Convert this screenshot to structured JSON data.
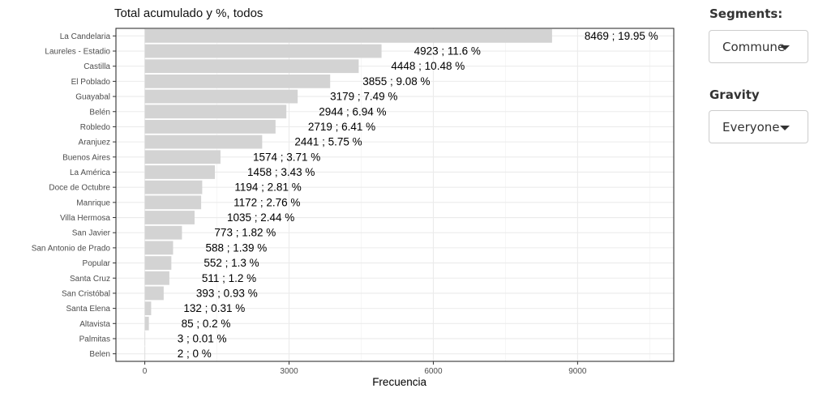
{
  "controls": {
    "segments": {
      "label": "Segments:",
      "value": "Commune",
      "caret_icon": "caret-down-icon"
    },
    "gravity": {
      "label": "Gravity",
      "value": "Everyone",
      "caret_icon": "caret-down-icon"
    }
  },
  "chart_data": {
    "type": "bar",
    "orientation": "horizontal",
    "title": "Total acumulado y %, todos",
    "xlabel": "Frecuencia",
    "ylabel": "",
    "xlim": [
      -600,
      11000
    ],
    "x_ticks": [
      0,
      3000,
      6000,
      9000
    ],
    "grid": true,
    "legend": "none",
    "bar_color": "#d3d3d3",
    "categories": [
      "La Candelaria",
      "Laureles - Estadio",
      "Castilla",
      "El Poblado",
      "Guayabal",
      "Belén",
      "Robledo",
      "Aranjuez",
      "Buenos Aires",
      "La América",
      "Doce de Octubre",
      "Manrique",
      "Villa Hermosa",
      "San Javier",
      "San Antonio de Prado",
      "Popular",
      "Santa Cruz",
      "San Cristóbal",
      "Santa Elena",
      "Altavista",
      "Palmitas",
      "Belen"
    ],
    "values": [
      8469,
      4923,
      4448,
      3855,
      3179,
      2944,
      2719,
      2441,
      1574,
      1458,
      1194,
      1172,
      1035,
      773,
      588,
      552,
      511,
      393,
      132,
      85,
      3,
      2
    ],
    "labels": [
      "8469 ; 19.95 %",
      "4923 ; 11.6 %",
      "4448 ; 10.48 %",
      "3855 ; 9.08 %",
      "3179 ; 7.49 %",
      "2944 ; 6.94 %",
      "2719 ; 6.41 %",
      "2441 ; 5.75 %",
      "1574 ; 3.71 %",
      "1458 ; 3.43 %",
      "1194 ; 2.81 %",
      "1172 ; 2.76 %",
      "1035 ; 2.44 %",
      "773 ; 1.82 %",
      "588 ; 1.39 %",
      "552 ; 1.3 %",
      "511 ; 1.2 %",
      "393 ; 0.93 %",
      "132 ; 0.31 %",
      "85 ; 0.2 %",
      "3 ; 0.01 %",
      "2 ; 0 %"
    ]
  }
}
